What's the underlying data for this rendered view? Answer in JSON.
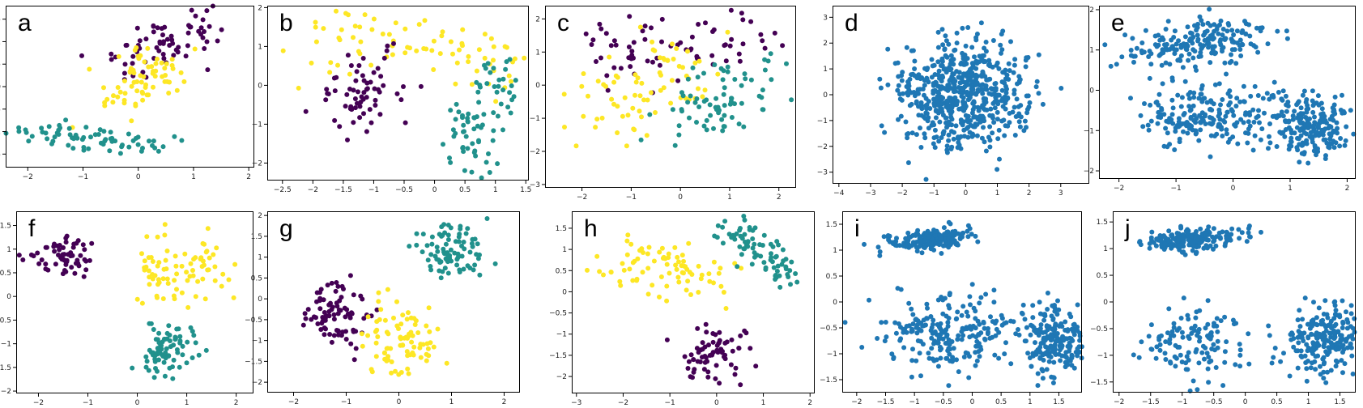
{
  "colors": {
    "purple": "#440154",
    "teal": "#21918c",
    "yellow": "#fde725",
    "blue": "#1f77b4"
  },
  "chart_data": [
    {
      "label": "a",
      "type": "scatter",
      "xlim": [
        -2.4,
        2.1
      ],
      "ylim": [
        -1.8,
        1.8
      ],
      "xticks": [
        -2,
        -1,
        0,
        1,
        2
      ],
      "yticks": [
        -1.5,
        -1.0,
        -0.5,
        0.0,
        0.5,
        1.0,
        1.5
      ],
      "clusters": [
        {
          "color": "purple",
          "cx": [
            -0.2,
            0.6,
            1.3
          ],
          "cy": [
            0.5,
            1.05,
            1.3
          ],
          "sx": 0.35,
          "sy": 0.25,
          "n": 70
        },
        {
          "color": "yellow",
          "cx": [
            -0.6,
            0.2,
            0.6
          ],
          "cy": [
            -0.3,
            0.2,
            0.7
          ],
          "sx": 0.35,
          "sy": 0.3,
          "n": 70
        },
        {
          "color": "teal",
          "cx": [
            -2.1,
            -0.9,
            0.2
          ],
          "cy": [
            -1.0,
            -1.15,
            -1.35
          ],
          "sx": 0.35,
          "sy": 0.14,
          "n": 70
        }
      ]
    },
    {
      "label": "b",
      "type": "scatter",
      "xlim": [
        -2.75,
        1.55
      ],
      "ylim": [
        -2.45,
        2.05
      ],
      "xticks": [
        -2.5,
        -2.0,
        -1.5,
        -1.0,
        -0.5,
        0.0,
        0.5,
        1.0,
        1.5
      ],
      "yticks": [
        -2,
        -1,
        0,
        1,
        2
      ],
      "clusters": [
        {
          "color": "yellow",
          "cx": [
            -2.0,
            -1.0,
            0.5,
            1.1
          ],
          "cy": [
            1.0,
            1.1,
            0.9,
            0.3
          ],
          "sx": 0.35,
          "sy": 0.45,
          "n": 80
        },
        {
          "color": "purple",
          "cx": [
            -1.5,
            -1.1,
            -0.6
          ],
          "cy": [
            -0.2,
            -0.5,
            0.6
          ],
          "sx": 0.3,
          "sy": 0.5,
          "n": 65
        },
        {
          "color": "teal",
          "cx": [
            0.4,
            0.7,
            1.2
          ],
          "cy": [
            -1.5,
            -1.0,
            0.4
          ],
          "sx": 0.2,
          "sy": 0.55,
          "n": 80
        }
      ]
    },
    {
      "label": "c",
      "type": "scatter",
      "xlim": [
        -2.75,
        2.35
      ],
      "ylim": [
        -3.1,
        2.4
      ],
      "xticks": [
        -2,
        -1,
        0,
        1,
        2
      ],
      "yticks": [
        -3,
        -2,
        -1,
        0,
        1,
        2
      ],
      "clusters": [
        {
          "color": "purple",
          "cx": [
            -1.8,
            -0.5,
            1.3
          ],
          "cy": [
            1.1,
            0.9,
            1.3
          ],
          "sx": 0.45,
          "sy": 0.5,
          "n": 70
        },
        {
          "color": "yellow",
          "cx": [
            -2.0,
            -0.8,
            0.2
          ],
          "cy": [
            -0.9,
            -0.2,
            0.6
          ],
          "sx": 0.45,
          "sy": 0.6,
          "n": 75
        },
        {
          "color": "teal",
          "cx": [
            0.0,
            0.8,
            1.8
          ],
          "cy": [
            -0.9,
            -0.4,
            0.2
          ],
          "sx": 0.4,
          "sy": 0.6,
          "n": 75
        }
      ]
    },
    {
      "label": "d",
      "type": "scatter",
      "xlim": [
        -4.2,
        3.9
      ],
      "ylim": [
        -3.45,
        3.45
      ],
      "xticks": [
        -4,
        -3,
        -2,
        -1,
        0,
        1,
        2,
        3
      ],
      "yticks": [
        -3,
        -2,
        -1,
        0,
        1,
        2,
        3
      ],
      "clusters": [
        {
          "color": "blue",
          "cx": [
            0.0
          ],
          "cy": [
            0.0
          ],
          "sx": 1.0,
          "sy": 1.0,
          "n": 600
        }
      ]
    },
    {
      "label": "e",
      "type": "scatter",
      "xlim": [
        -2.35,
        2.15
      ],
      "ylim": [
        -2.2,
        2.1
      ],
      "xticks": [
        -2,
        -1,
        0,
        1,
        2
      ],
      "yticks": [
        -2,
        -1,
        0,
        1,
        2
      ],
      "clusters": [
        {
          "color": "blue",
          "cx": [
            -1.5,
            -0.6,
            0.2
          ],
          "cy": [
            1.0,
            1.2,
            1.3
          ],
          "sx": 0.35,
          "sy": 0.3,
          "n": 200
        },
        {
          "color": "blue",
          "cx": [
            -1.3,
            -0.5,
            0.4
          ],
          "cy": [
            -0.6,
            -0.7,
            -0.5
          ],
          "sx": 0.4,
          "sy": 0.35,
          "n": 200
        },
        {
          "color": "blue",
          "cx": [
            1.1,
            1.6
          ],
          "cy": [
            -0.7,
            -1.0
          ],
          "sx": 0.3,
          "sy": 0.4,
          "n": 200
        }
      ]
    },
    {
      "label": "f",
      "type": "scatter",
      "xlim": [
        -2.45,
        2.35
      ],
      "ylim": [
        -2.05,
        1.8
      ],
      "xticks": [
        -2,
        -1,
        0,
        1,
        2
      ],
      "yticks": [
        -2.0,
        -1.5,
        -1.0,
        -0.5,
        0.0,
        0.5,
        1.0,
        1.5
      ],
      "clusters": [
        {
          "color": "purple",
          "cx": [
            -1.5
          ],
          "cy": [
            0.85
          ],
          "sx": 0.3,
          "sy": 0.2,
          "n": 60
        },
        {
          "color": "yellow",
          "cx": [
            0.3,
            0.8,
            1.6
          ],
          "cy": [
            0.8,
            0.3,
            0.9
          ],
          "sx": 0.35,
          "sy": 0.35,
          "n": 80
        },
        {
          "color": "teal",
          "cx": [
            0.4,
            0.8
          ],
          "cy": [
            -1.4,
            -0.9
          ],
          "sx": 0.25,
          "sy": 0.25,
          "n": 80
        }
      ]
    },
    {
      "label": "g",
      "type": "scatter",
      "xlim": [
        -2.5,
        2.3
      ],
      "ylim": [
        -2.25,
        2.1
      ],
      "xticks": [
        -2,
        -1,
        0,
        1,
        2
      ],
      "yticks": [
        -2.0,
        -1.5,
        -1.0,
        -0.5,
        0.0,
        0.5,
        1.0,
        1.5,
        2.0
      ],
      "clusters": [
        {
          "color": "purple",
          "cx": [
            -1.2
          ],
          "cy": [
            -0.4
          ],
          "sx": 0.3,
          "sy": 0.4,
          "n": 85
        },
        {
          "color": "yellow",
          "cx": [
            0.1
          ],
          "cy": [
            -1.0
          ],
          "sx": 0.35,
          "sy": 0.45,
          "n": 85
        },
        {
          "color": "teal",
          "cx": [
            1.0
          ],
          "cy": [
            1.2
          ],
          "sx": 0.35,
          "sy": 0.35,
          "n": 85
        }
      ]
    },
    {
      "label": "h",
      "type": "scatter",
      "xlim": [
        -3.1,
        2.1
      ],
      "ylim": [
        -2.4,
        1.9
      ],
      "xticks": [
        -3,
        -2,
        -1,
        0,
        1,
        2
      ],
      "yticks": [
        -2.0,
        -1.5,
        -1.0,
        -0.5,
        0.0,
        0.5,
        1.0,
        1.5
      ],
      "clusters": [
        {
          "color": "yellow",
          "cx": [
            -2.0,
            -1.0,
            0.0
          ],
          "cy": [
            0.5,
            0.6,
            0.3
          ],
          "sx": 0.45,
          "sy": 0.35,
          "n": 80
        },
        {
          "color": "teal",
          "cx": [
            0.3,
            1.0,
            1.6
          ],
          "cy": [
            1.5,
            0.9,
            0.3
          ],
          "sx": 0.25,
          "sy": 0.18,
          "n": 80
        },
        {
          "color": "purple",
          "cx": [
            0.0
          ],
          "cy": [
            -1.5
          ],
          "sx": 0.35,
          "sy": 0.35,
          "n": 70
        }
      ]
    },
    {
      "label": "i",
      "type": "scatter",
      "xlim": [
        -2.25,
        1.9
      ],
      "ylim": [
        -1.75,
        1.75
      ],
      "xticks": [
        -2.0,
        -1.5,
        -1.0,
        -0.5,
        0.0,
        0.5,
        1.0,
        1.5
      ],
      "yticks": [
        -1.5,
        -1.0,
        -0.5,
        0.0,
        0.5,
        1.0,
        1.5
      ],
      "clusters": [
        {
          "color": "blue",
          "cx": [
            -1.3,
            -0.7,
            -0.3
          ],
          "cy": [
            1.15,
            1.2,
            1.3
          ],
          "sx": 0.25,
          "sy": 0.1,
          "n": 180
        },
        {
          "color": "blue",
          "cx": [
            -1.2,
            -0.4,
            0.4
          ],
          "cy": [
            -0.7,
            -0.6,
            -0.6
          ],
          "sx": 0.4,
          "sy": 0.35,
          "n": 230
        },
        {
          "color": "blue",
          "cx": [
            1.3,
            1.6
          ],
          "cy": [
            -0.6,
            -0.9
          ],
          "sx": 0.25,
          "sy": 0.35,
          "n": 200
        }
      ]
    },
    {
      "label": "j",
      "type": "scatter",
      "xlim": [
        -2.1,
        1.75
      ],
      "ylim": [
        -1.7,
        1.7
      ],
      "xticks": [
        -2.0,
        -1.5,
        -1.0,
        -0.5,
        0.0,
        0.5,
        1.0,
        1.5
      ],
      "yticks": [
        -1.5,
        -1.0,
        -0.5,
        0.0,
        0.5,
        1.0,
        1.5
      ],
      "clusters": [
        {
          "color": "blue",
          "cx": [
            -1.3,
            -0.8,
            -0.3
          ],
          "cy": [
            1.1,
            1.15,
            1.25
          ],
          "sx": 0.25,
          "sy": 0.1,
          "n": 200
        },
        {
          "color": "blue",
          "cx": [
            -1.5,
            -0.9,
            -0.3
          ],
          "cy": [
            -0.8,
            -0.8,
            -0.7
          ],
          "sx": 0.3,
          "sy": 0.35,
          "n": 120
        },
        {
          "color": "blue",
          "cx": [
            0.9,
            1.3,
            1.6
          ],
          "cy": [
            -0.8,
            -0.7,
            -0.5
          ],
          "sx": 0.25,
          "sy": 0.35,
          "n": 220
        }
      ]
    }
  ]
}
